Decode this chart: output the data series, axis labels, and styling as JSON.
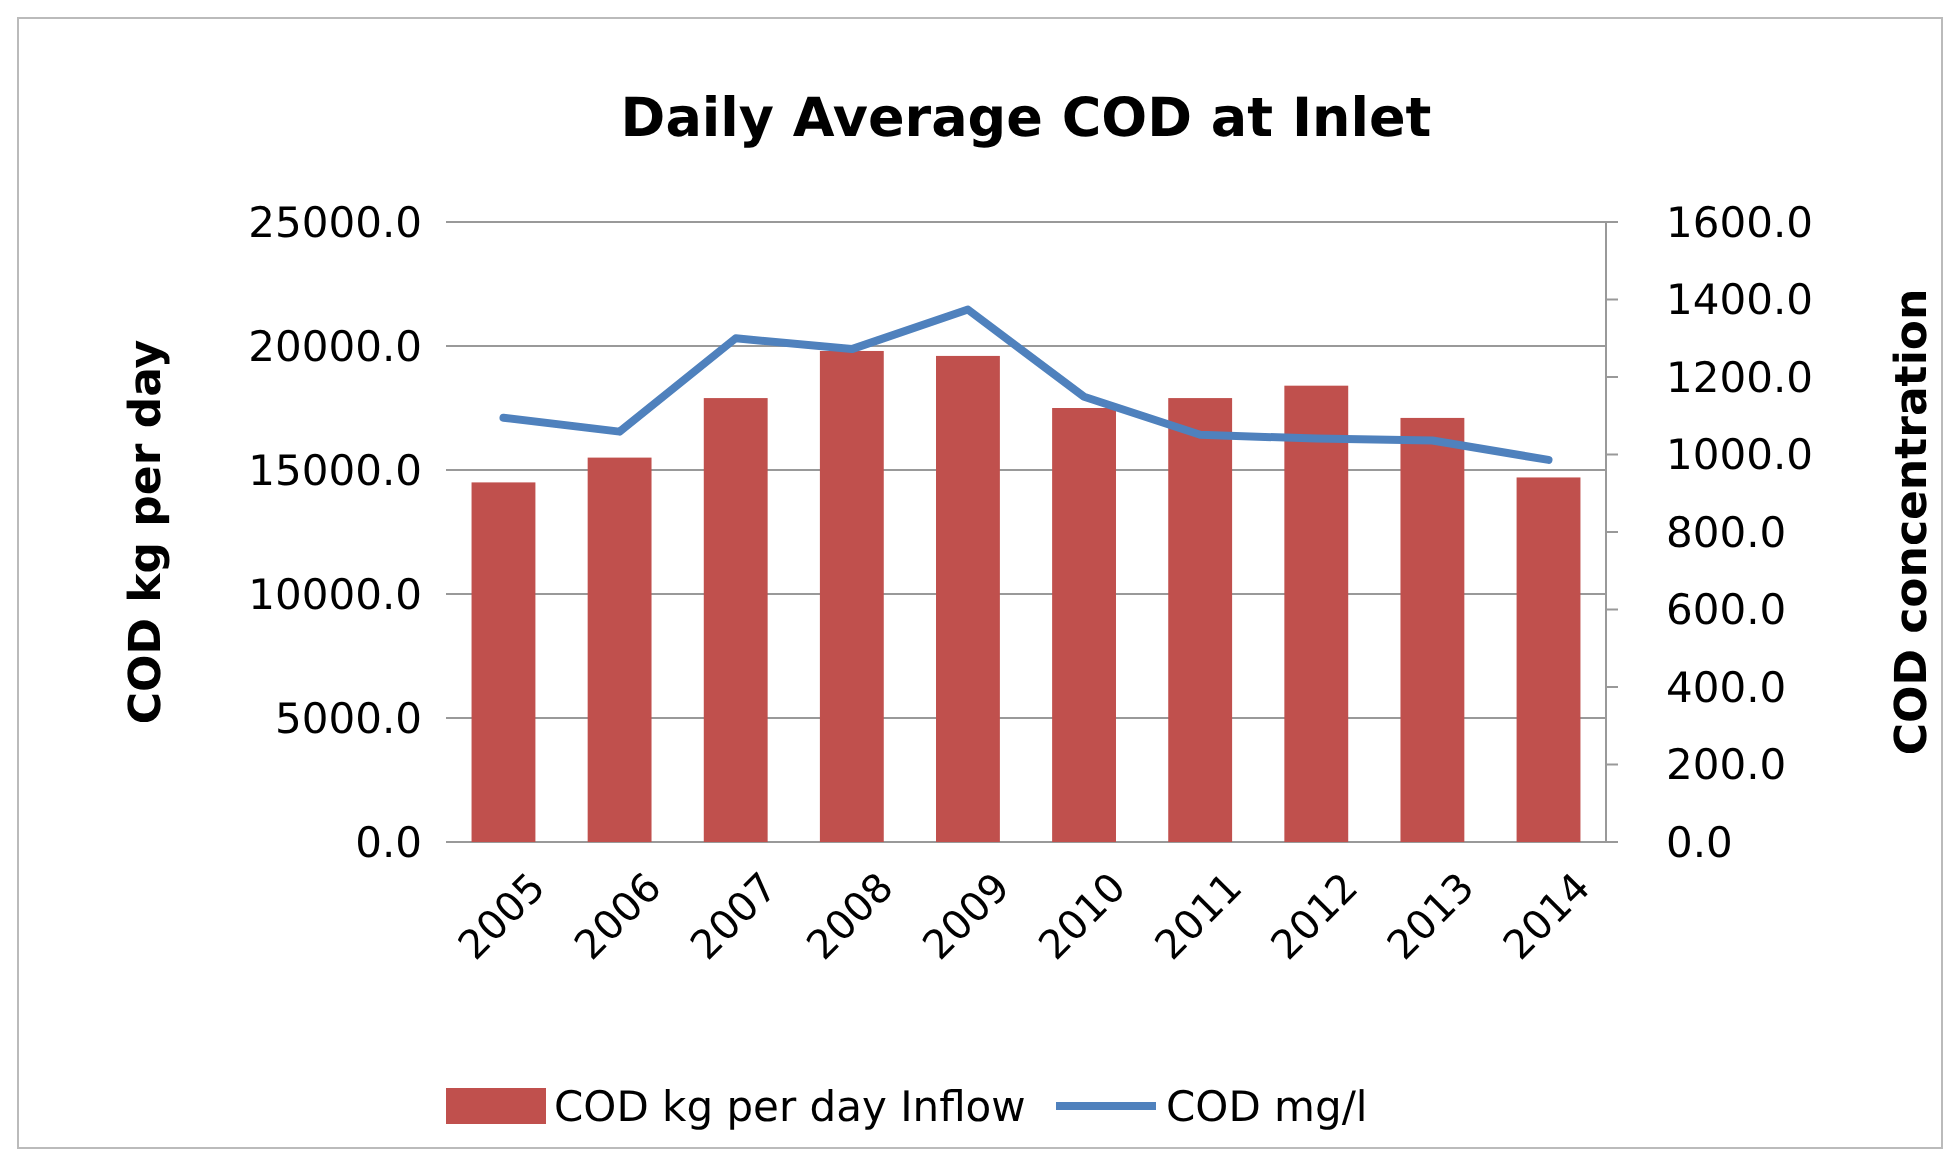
{
  "chart_data": {
    "type": "bar",
    "title": "Daily Average COD at Inlet",
    "ylabel": "COD kg per day",
    "y2label": "COD concentration",
    "categories": [
      "2005",
      "2006",
      "2007",
      "2008",
      "2009",
      "2010",
      "2011",
      "2012",
      "2013",
      "2014"
    ],
    "series": [
      {
        "name": "COD kg per day Inflow",
        "color": "#c0504d",
        "values": [
          14500,
          15500,
          17900,
          19800,
          19600,
          17500,
          17900,
          18400,
          17100,
          14700
        ]
      },
      {
        "name": "COD mg/l",
        "type": "line",
        "axis": "y2",
        "color": "#4f81bd",
        "values": [
          1095,
          1059,
          1300,
          1272,
          1374,
          1149,
          1051,
          1041,
          1036,
          986
        ]
      }
    ],
    "ylim": [
      0,
      25000
    ],
    "yticks": [
      {
        "value": 0,
        "label": "0.0"
      },
      {
        "value": 5000,
        "label": "5000.0"
      },
      {
        "value": 10000,
        "label": "10000.0"
      },
      {
        "value": 15000,
        "label": "15000.0"
      },
      {
        "value": 20000,
        "label": "20000.0"
      },
      {
        "value": 25000,
        "label": "25000.0"
      }
    ],
    "y2lim": [
      0,
      1600
    ],
    "y2ticks": [
      {
        "value": 0,
        "label": "0.0"
      },
      {
        "value": 200,
        "label": "200.0"
      },
      {
        "value": 400,
        "label": "400.0"
      },
      {
        "value": 600,
        "label": "600.0"
      },
      {
        "value": 800,
        "label": "800.0"
      },
      {
        "value": 1000,
        "label": "1000.0"
      },
      {
        "value": 1200,
        "label": "1200.0"
      },
      {
        "value": 1400,
        "label": "1400.0"
      },
      {
        "value": 1600,
        "label": "1600.0"
      }
    ],
    "grid": "y",
    "legend": "bottom",
    "marker": "none",
    "line_style": "solid"
  }
}
